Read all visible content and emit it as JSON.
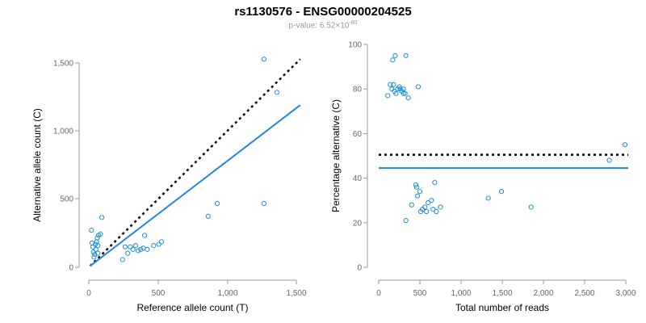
{
  "title": "rs1130576 - ENSG00000204525",
  "subtitle": {
    "prefix": "p-value: 6.52×10",
    "exponent": "-80"
  },
  "chart_data": [
    {
      "type": "scatter",
      "xlabel": "Reference allele count (T)",
      "ylabel": "Alternative allele count (C)",
      "xlim": [
        0,
        1600
      ],
      "ylim": [
        0,
        1600
      ],
      "xticks": [
        "0",
        "500",
        "1,000",
        "1,500"
      ],
      "yticks": [
        "0",
        "500",
        "1,000",
        "1,500"
      ],
      "points": [
        [
          20,
          290
        ],
        [
          25,
          190
        ],
        [
          30,
          160
        ],
        [
          35,
          120
        ],
        [
          40,
          80
        ],
        [
          50,
          180
        ],
        [
          55,
          140
        ],
        [
          60,
          200
        ],
        [
          65,
          230
        ],
        [
          70,
          170
        ],
        [
          75,
          250
        ],
        [
          90,
          260
        ],
        [
          100,
          390
        ],
        [
          70,
          110
        ],
        [
          45,
          100
        ],
        [
          260,
          60
        ],
        [
          280,
          160
        ],
        [
          300,
          110
        ],
        [
          320,
          160
        ],
        [
          340,
          140
        ],
        [
          360,
          170
        ],
        [
          380,
          130
        ],
        [
          400,
          140
        ],
        [
          420,
          150
        ],
        [
          430,
          250
        ],
        [
          450,
          140
        ],
        [
          500,
          170
        ],
        [
          540,
          180
        ],
        [
          560,
          200
        ],
        [
          920,
          400
        ],
        [
          990,
          500
        ],
        [
          1350,
          500
        ],
        [
          1350,
          1630
        ],
        [
          1450,
          1370
        ]
      ],
      "fit_line": {
        "x": [
          10,
          1630
        ],
        "y": [
          10,
          1270
        ]
      },
      "reference_line": {
        "x": [
          10,
          1630
        ],
        "y": [
          10,
          1630
        ]
      },
      "colors": {
        "points": "#1f8fd6",
        "fit": "#1e88e5",
        "reference": "#000000"
      }
    },
    {
      "type": "scatter",
      "xlabel": "Total number of reads",
      "ylabel": "Percentage alternative (C)",
      "xlim": [
        0,
        3000
      ],
      "ylim": [
        0,
        100
      ],
      "xticks": [
        "0",
        "500",
        "1,000",
        "1,500",
        "2,000",
        "2,500",
        "3,000"
      ],
      "yticks": [
        "0",
        "20",
        "40",
        "60",
        "80",
        "100"
      ],
      "points": [
        [
          110,
          77
        ],
        [
          140,
          82
        ],
        [
          160,
          80
        ],
        [
          170,
          93
        ],
        [
          180,
          82
        ],
        [
          190,
          79
        ],
        [
          200,
          95
        ],
        [
          210,
          78
        ],
        [
          230,
          80
        ],
        [
          250,
          81
        ],
        [
          260,
          80
        ],
        [
          280,
          79
        ],
        [
          300,
          80
        ],
        [
          320,
          78
        ],
        [
          330,
          95
        ],
        [
          360,
          76
        ],
        [
          480,
          81
        ],
        [
          300,
          78
        ],
        [
          330,
          21
        ],
        [
          400,
          28
        ],
        [
          450,
          37
        ],
        [
          460,
          36
        ],
        [
          470,
          32
        ],
        [
          500,
          34
        ],
        [
          510,
          25
        ],
        [
          530,
          26
        ],
        [
          560,
          27
        ],
        [
          580,
          25
        ],
        [
          600,
          29
        ],
        [
          640,
          30
        ],
        [
          660,
          26
        ],
        [
          680,
          38
        ],
        [
          700,
          25
        ],
        [
          750,
          27
        ],
        [
          1330,
          31
        ],
        [
          1490,
          34
        ],
        [
          1850,
          27
        ],
        [
          2800,
          48
        ],
        [
          2990,
          55
        ]
      ],
      "fit_line": {
        "x": [
          0,
          3030
        ],
        "y": [
          44.5,
          44.5
        ]
      },
      "reference_line": {
        "x": [
          0,
          3030
        ],
        "y": [
          50.5,
          50.5
        ]
      },
      "colors": {
        "points": "#1f8fd6",
        "fit": "#1e88e5",
        "reference": "#000000"
      }
    }
  ]
}
